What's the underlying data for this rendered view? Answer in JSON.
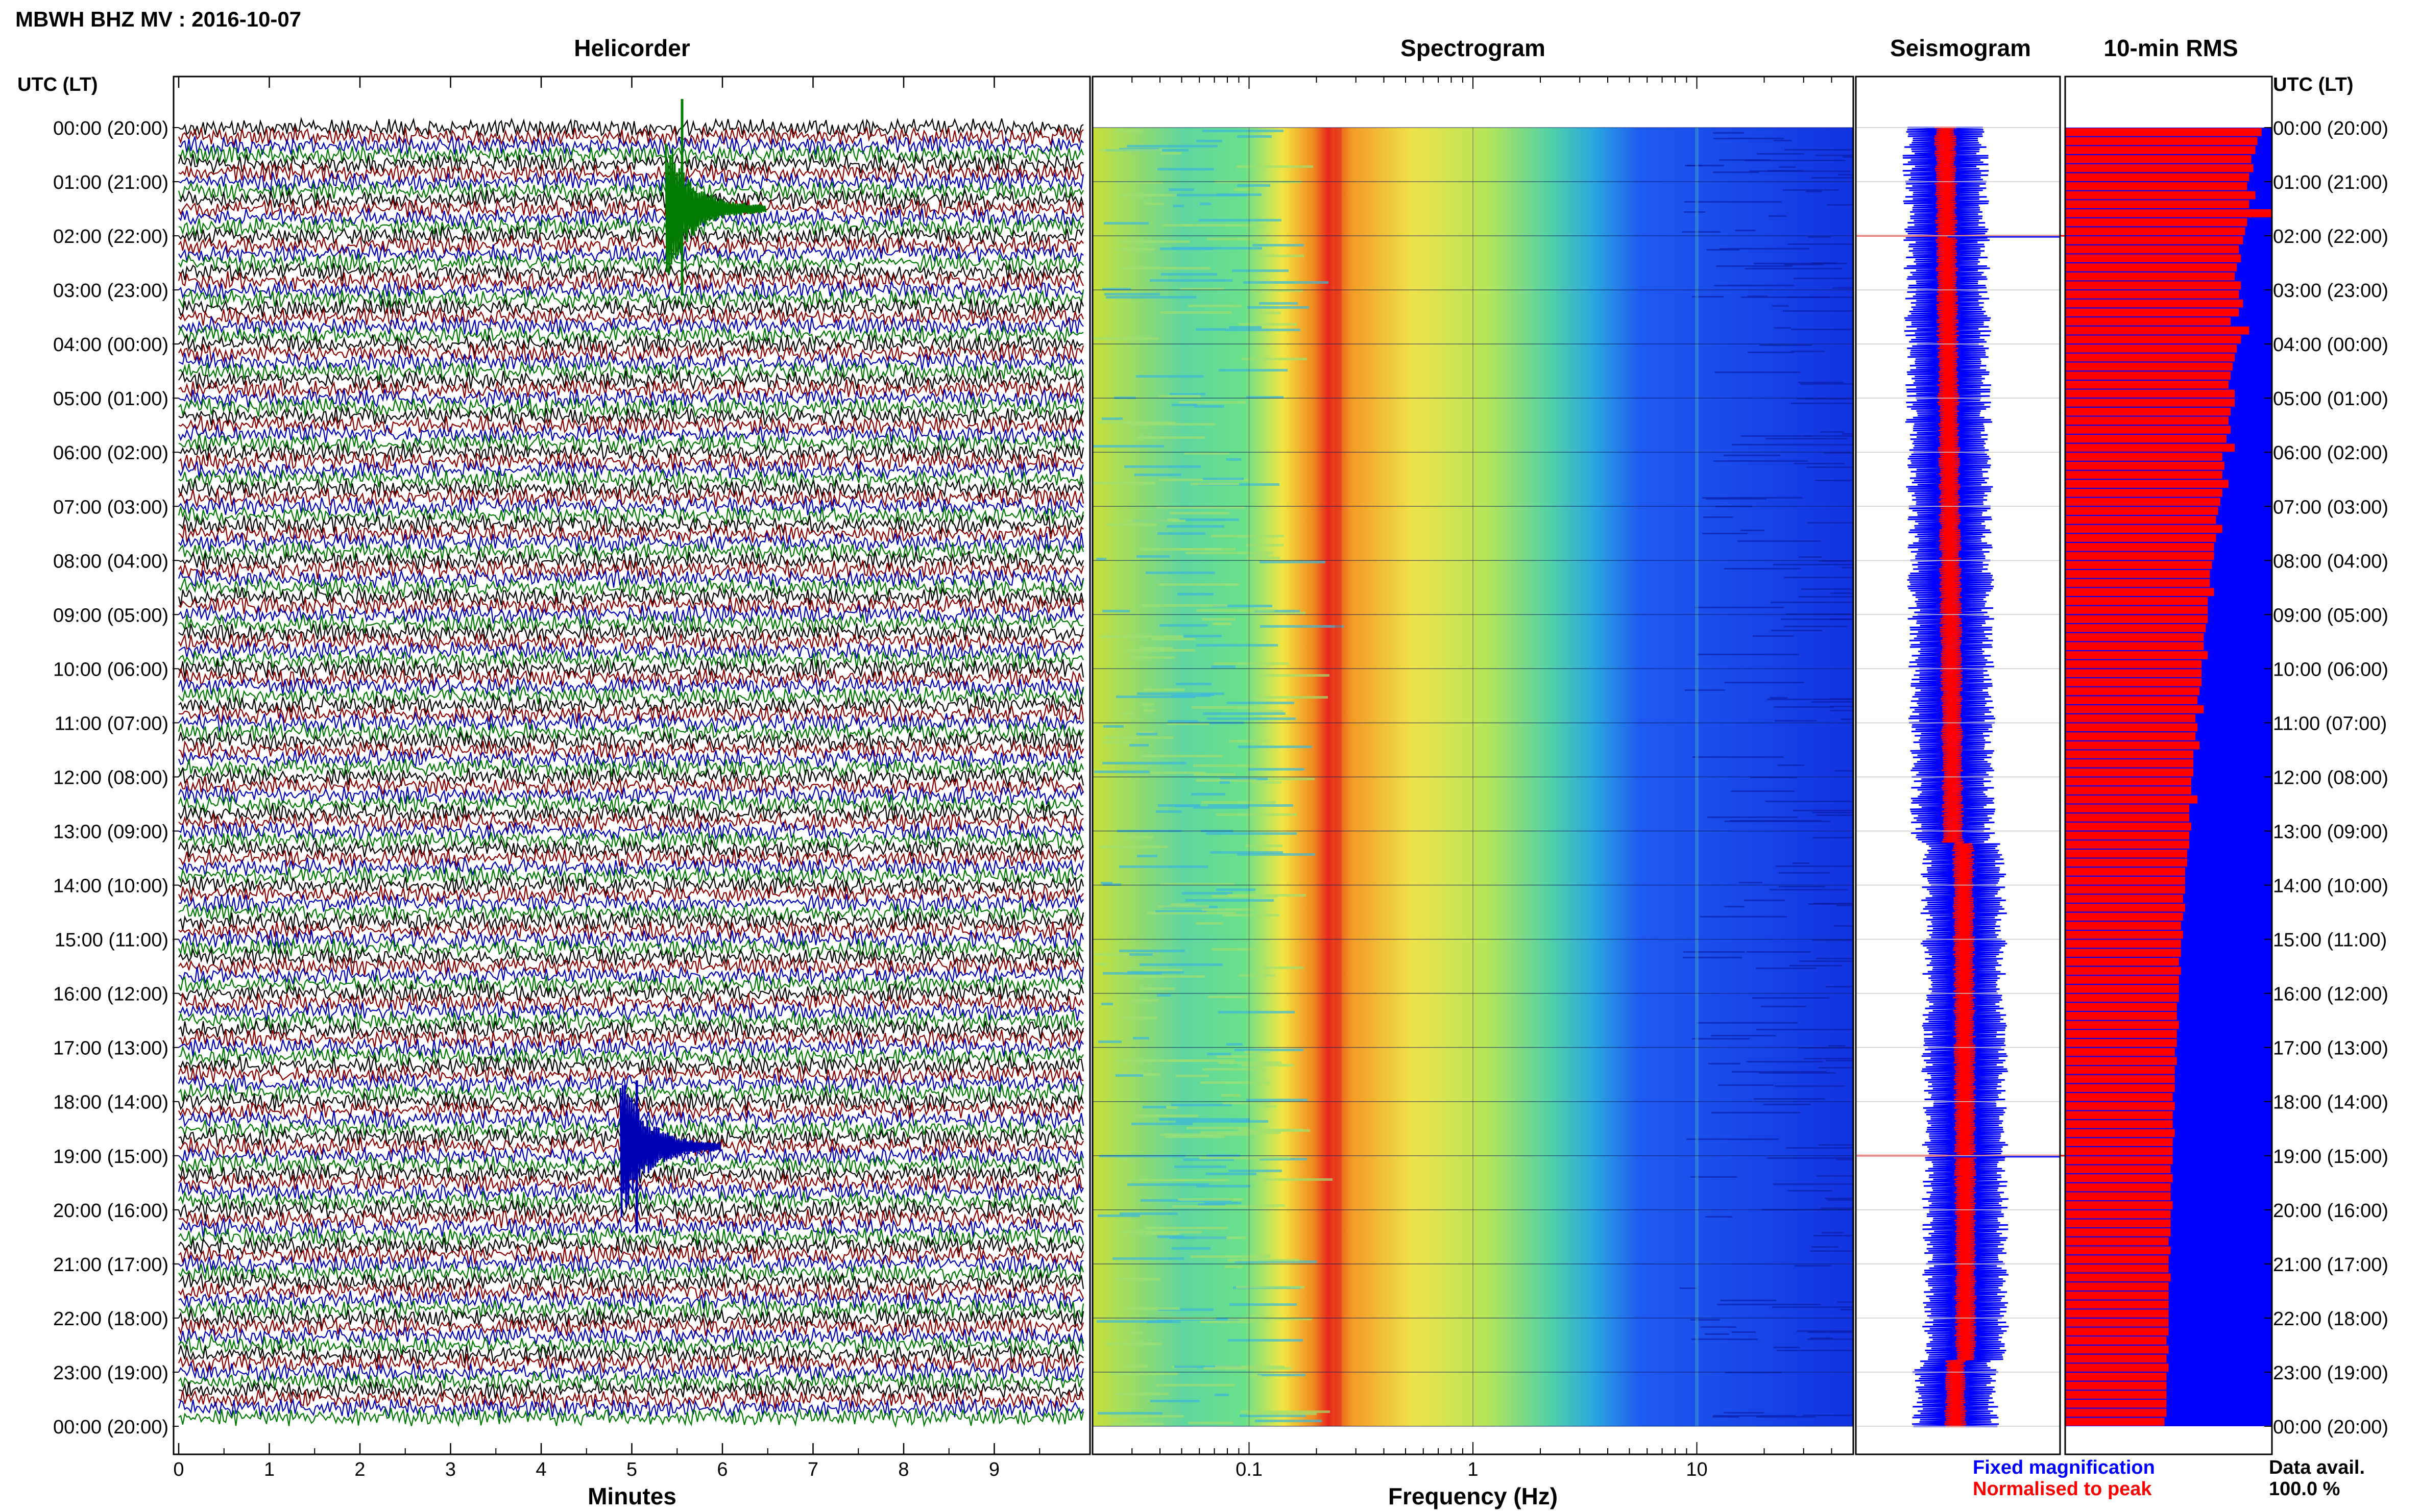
{
  "header": {
    "station_title": "MBWH BHZ MV : 2016-10-07",
    "utc_lt_left": "UTC (LT)",
    "utc_lt_right": "UTC (LT)"
  },
  "panels": {
    "helicorder": {
      "title": "Helicorder",
      "xlabel": "Minutes"
    },
    "spectrogram": {
      "title": "Spectrogram",
      "xlabel": "Frequency (Hz)"
    },
    "seismogram": {
      "title": "Seismogram"
    },
    "rms": {
      "title": "10-min RMS"
    }
  },
  "legend": {
    "fixed": "Fixed magnification",
    "normalised": "Normalised to peak"
  },
  "data_availability": {
    "label": "Data avail.",
    "value": "100.0 %"
  },
  "colors": {
    "trace_black": "#000000",
    "trace_red": "#8b0000",
    "trace_blue": "#0000b4",
    "trace_green": "#007a00",
    "fixed_blue": "#0000ff",
    "normalised_red": "#ff0000"
  },
  "chart_data": {
    "type": "heatmap",
    "time_labels": [
      "00:00 (20:00)",
      "01:00 (21:00)",
      "02:00 (22:00)",
      "03:00 (23:00)",
      "04:00 (00:00)",
      "05:00 (01:00)",
      "06:00 (02:00)",
      "07:00 (03:00)",
      "08:00 (04:00)",
      "09:00 (05:00)",
      "10:00 (06:00)",
      "11:00 (07:00)",
      "12:00 (08:00)",
      "13:00 (09:00)",
      "14:00 (10:00)",
      "15:00 (11:00)",
      "16:00 (12:00)",
      "17:00 (13:00)",
      "18:00 (14:00)",
      "19:00 (15:00)",
      "20:00 (16:00)",
      "21:00 (17:00)",
      "22:00 (18:00)",
      "23:00 (19:00)",
      "00:00 (20:00)"
    ],
    "helicorder": {
      "x_ticks": [
        "0",
        "1",
        "2",
        "3",
        "4",
        "5",
        "6",
        "7",
        "8",
        "9"
      ],
      "xlim": [
        0,
        10
      ],
      "lines_per_hour": 6,
      "trace_color_cycle": [
        "black",
        "red",
        "blue",
        "green"
      ],
      "events": [
        {
          "time": "01:30",
          "minute": 5.6,
          "color": "green"
        },
        {
          "time": "18:50",
          "minute": 5.1,
          "color": "blue"
        }
      ]
    },
    "spectrogram": {
      "x_ticks": [
        0.1,
        1,
        10
      ],
      "x_tick_labels": [
        "0.1",
        "1",
        "10"
      ],
      "xlim": [
        0.02,
        50
      ],
      "scale": "log",
      "peak_frequency_hz": 0.25
    },
    "seismogram": {
      "series": [
        {
          "name": "Fixed magnification",
          "color": "blue"
        },
        {
          "name": "Normalised to peak",
          "color": "red"
        }
      ],
      "spikes": [
        "02:00",
        "19:00"
      ]
    },
    "rms": {
      "interval_minutes": 10,
      "xlim": [
        0,
        1
      ],
      "values": [
        0.95,
        0.93,
        0.92,
        0.9,
        0.91,
        0.89,
        0.88,
        0.92,
        0.89,
        1.0,
        0.88,
        0.87,
        0.86,
        0.84,
        0.85,
        0.83,
        0.82,
        0.85,
        0.84,
        0.86,
        0.84,
        0.8,
        0.89,
        0.85,
        0.83,
        0.82,
        0.81,
        0.8,
        0.79,
        0.82,
        0.82,
        0.8,
        0.79,
        0.8,
        0.78,
        0.82,
        0.76,
        0.77,
        0.76,
        0.79,
        0.76,
        0.75,
        0.74,
        0.73,
        0.76,
        0.73,
        0.72,
        0.72,
        0.71,
        0.7,
        0.7,
        0.72,
        0.69,
        0.69,
        0.69,
        0.68,
        0.67,
        0.67,
        0.69,
        0.66,
        0.66,
        0.66,
        0.65,
        0.64,
        0.67,
        0.63,
        0.64,
        0.63,
        0.65,
        0.62,
        0.62,
        0.62,
        0.61,
        0.61,
        0.64,
        0.6,
        0.6,
        0.61,
        0.6,
        0.6,
        0.59,
        0.59,
        0.58,
        0.58,
        0.58,
        0.57,
        0.58,
        0.57,
        0.56,
        0.57,
        0.56,
        0.56,
        0.55,
        0.56,
        0.55,
        0.55,
        0.55,
        0.54,
        0.54,
        0.55,
        0.54,
        0.54,
        0.53,
        0.54,
        0.53,
        0.53,
        0.53,
        0.52,
        0.53,
        0.52,
        0.52,
        0.53,
        0.52,
        0.52,
        0.52,
        0.51,
        0.52,
        0.51,
        0.51,
        0.52,
        0.51,
        0.51,
        0.51,
        0.5,
        0.51,
        0.5,
        0.5,
        0.51,
        0.5,
        0.5,
        0.5,
        0.5,
        0.5,
        0.5,
        0.49,
        0.5,
        0.49,
        0.5,
        0.49,
        0.49,
        0.49,
        0.49,
        0.49,
        0.48
      ]
    }
  }
}
